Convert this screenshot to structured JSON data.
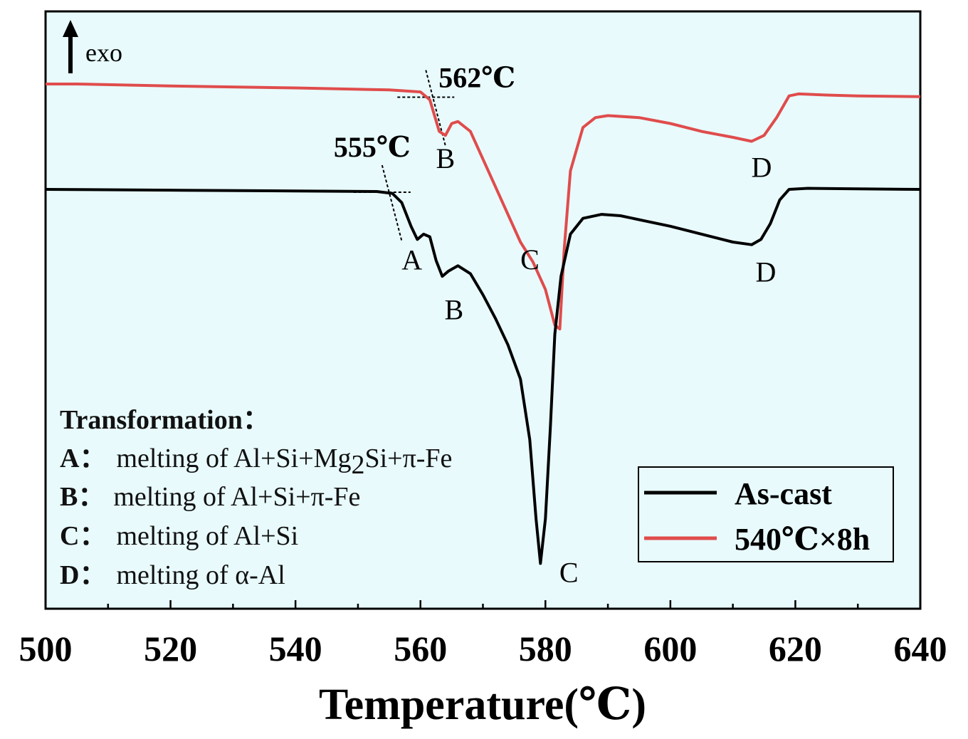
{
  "chart_data": {
    "type": "line",
    "title": "",
    "xlabel": "Temperature(℃)",
    "ylabel": "",
    "xlim": [
      500,
      640
    ],
    "x_ticks": [
      "500",
      "520",
      "540",
      "560",
      "580",
      "600",
      "620",
      "640"
    ],
    "y_ticks": [],
    "grid": false,
    "legend_position": "bottom-right",
    "exo_label": "exo",
    "series": [
      {
        "name": "As-cast",
        "color": "#000000",
        "points": [
          [
            500,
            0.0
          ],
          [
            520,
            -0.003
          ],
          [
            540,
            -0.006
          ],
          [
            553,
            -0.008
          ],
          [
            555.5,
            -0.015
          ],
          [
            557,
            -0.05
          ],
          [
            558.5,
            -0.14
          ],
          [
            559.5,
            -0.19
          ],
          [
            560.5,
            -0.17
          ],
          [
            561.5,
            -0.18
          ],
          [
            562.5,
            -0.27
          ],
          [
            563.5,
            -0.33
          ],
          [
            564.5,
            -0.31
          ],
          [
            566,
            -0.29
          ],
          [
            568,
            -0.32
          ],
          [
            570,
            -0.4
          ],
          [
            572,
            -0.49
          ],
          [
            574,
            -0.59
          ],
          [
            576,
            -0.72
          ],
          [
            577.5,
            -0.95
          ],
          [
            578.5,
            -1.25
          ],
          [
            579.2,
            -1.42
          ],
          [
            580,
            -1.25
          ],
          [
            580.8,
            -0.9
          ],
          [
            581.5,
            -0.55
          ],
          [
            582.5,
            -0.33
          ],
          [
            584,
            -0.17
          ],
          [
            586,
            -0.11
          ],
          [
            589,
            -0.095
          ],
          [
            592,
            -0.1
          ],
          [
            596,
            -0.12
          ],
          [
            600,
            -0.14
          ],
          [
            605,
            -0.17
          ],
          [
            610,
            -0.2
          ],
          [
            613,
            -0.21
          ],
          [
            614.5,
            -0.19
          ],
          [
            616,
            -0.13
          ],
          [
            617.5,
            -0.04
          ],
          [
            619,
            0.0
          ],
          [
            622,
            0.004
          ],
          [
            630,
            0.002
          ],
          [
            640,
            0.0
          ]
        ]
      },
      {
        "name": "540℃×8h",
        "color": "#e04c4c",
        "points": [
          [
            500,
            0.0
          ],
          [
            505,
            0.0
          ],
          [
            520,
            -0.005
          ],
          [
            540,
            -0.01
          ],
          [
            555,
            -0.015
          ],
          [
            560,
            -0.02
          ],
          [
            561.5,
            -0.04
          ],
          [
            563,
            -0.12
          ],
          [
            564,
            -0.13
          ],
          [
            565,
            -0.1
          ],
          [
            566,
            -0.095
          ],
          [
            568,
            -0.12
          ],
          [
            570,
            -0.19
          ],
          [
            572,
            -0.26
          ],
          [
            574,
            -0.33
          ],
          [
            576,
            -0.4
          ],
          [
            578,
            -0.45
          ],
          [
            580,
            -0.52
          ],
          [
            581.5,
            -0.61
          ],
          [
            582.3,
            -0.62
          ],
          [
            583,
            -0.42
          ],
          [
            584,
            -0.22
          ],
          [
            586,
            -0.11
          ],
          [
            588,
            -0.085
          ],
          [
            590,
            -0.08
          ],
          [
            595,
            -0.085
          ],
          [
            600,
            -0.1
          ],
          [
            605,
            -0.12
          ],
          [
            610,
            -0.135
          ],
          [
            613,
            -0.145
          ],
          [
            615,
            -0.13
          ],
          [
            617,
            -0.085
          ],
          [
            619,
            -0.03
          ],
          [
            620.5,
            -0.025
          ],
          [
            625,
            -0.028
          ],
          [
            630,
            -0.03
          ],
          [
            640,
            -0.032
          ]
        ]
      }
    ],
    "peak_labels": [
      {
        "text": "A",
        "series": "As-cast",
        "x": 560
      },
      {
        "text": "B",
        "series": "As-cast",
        "x": 564
      },
      {
        "text": "C",
        "series": "As-cast",
        "x": 579.2
      },
      {
        "text": "D",
        "series": "As-cast",
        "x": 613
      },
      {
        "text": "B",
        "series": "540℃×8h",
        "x": 564
      },
      {
        "text": "C",
        "series": "540℃×8h",
        "x": 582.3
      },
      {
        "text": "D",
        "series": "540℃×8h",
        "x": 613
      }
    ],
    "onset_annotations": [
      {
        "text": "555℃",
        "series": "As-cast",
        "x": 555
      },
      {
        "text": "562℃",
        "series": "540℃×8h",
        "x": 562
      }
    ],
    "annotations": {
      "title": "Transformation：",
      "items": [
        {
          "key": "A：",
          "text_before": "melting of Al+Si+Mg",
          "subscript": "2",
          "text_after": "Si+π-Fe"
        },
        {
          "key": "B：",
          "text_before": "melting of Al+Si+π-Fe",
          "subscript": "",
          "text_after": ""
        },
        {
          "key": "C：",
          "text_before": "melting of Al+Si",
          "subscript": "",
          "text_after": ""
        },
        {
          "key": "D：",
          "text_before": "melting of α-Al",
          "subscript": "",
          "text_after": ""
        }
      ]
    },
    "plot_background": "#e8fafc"
  }
}
